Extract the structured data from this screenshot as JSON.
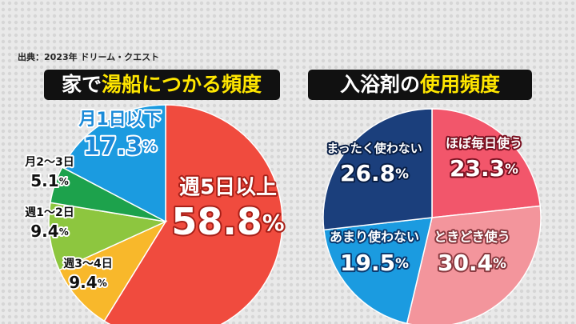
{
  "source": "出典：2023年 ドリーム・クエスト",
  "chart_data": [
    {
      "type": "pie",
      "title": [
        "家で",
        "湯船につかる頻度"
      ],
      "categories": [
        "週5日以上",
        "週3〜4日",
        "週1〜2日",
        "月2〜3日",
        "月1日以下"
      ],
      "values": [
        58.8,
        9.4,
        9.4,
        5.1,
        17.3
      ],
      "value_labels": [
        "58.8%",
        "9.4%",
        "9.4%",
        "5.1%",
        "17.3%"
      ],
      "colors": [
        "#f04b3e",
        "#f8b82b",
        "#8dc63f",
        "#1da24c",
        "#1b9be0"
      ]
    },
    {
      "type": "pie",
      "title": [
        "入浴剤の",
        "使用頻度"
      ],
      "categories": [
        "ほぼ毎日使う",
        "ときどき使う",
        "あまり使わない",
        "まったく使わない"
      ],
      "values": [
        23.3,
        30.4,
        19.5,
        26.8
      ],
      "value_labels": [
        "23.3%",
        "30.4%",
        "19.5%",
        "26.8%"
      ],
      "colors": [
        "#f2566b",
        "#f3959c",
        "#1b9be0",
        "#1b3f7c"
      ]
    }
  ]
}
